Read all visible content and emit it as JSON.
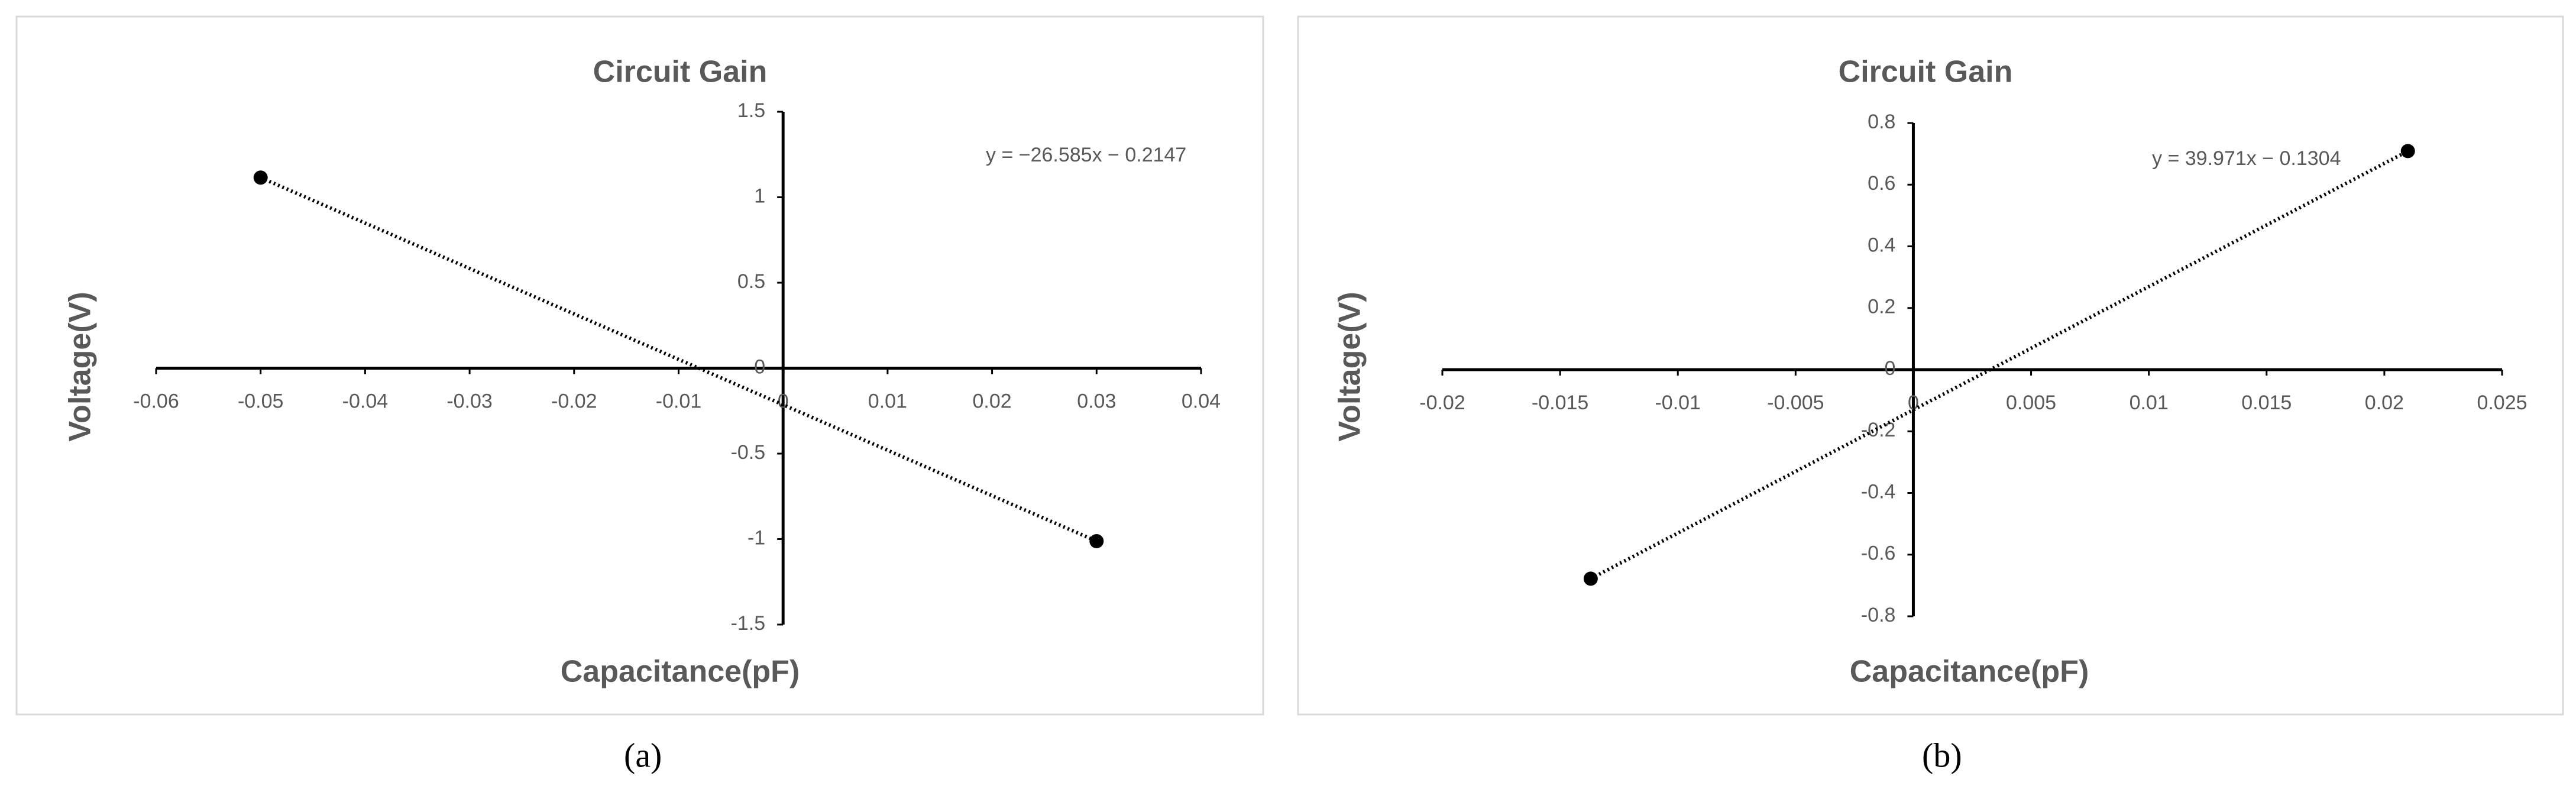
{
  "chart_data": [
    {
      "type": "scatter",
      "title": "Circuit Gain",
      "x_label": "Capacitance(pF)",
      "y_label": "Voltage(V)",
      "annotation": "y = −26.585x − 0.2147",
      "caption": "(a)",
      "x": [
        -0.05,
        0.03
      ],
      "values": [
        1.115,
        -1.012
      ],
      "color": "#000000",
      "trendline": true,
      "xlim": [
        -0.06,
        0.04
      ],
      "xticks": [
        -0.06,
        -0.05,
        -0.04,
        -0.03,
        -0.02,
        -0.01,
        0,
        0.01,
        0.02,
        0.03,
        0.04
      ],
      "ylim": [
        -1.5,
        1.5
      ],
      "yticks": [
        -1.5,
        -1,
        -0.5,
        0,
        0.5,
        1,
        1.5
      ]
    },
    {
      "type": "scatter",
      "title": "Circuit Gain",
      "x_label": "Capacitance(pF)",
      "y_label": "Voltage(V)",
      "annotation": "y = 39.971x − 0.1304",
      "caption": "(b)",
      "x": [
        -0.0137,
        0.021
      ],
      "values": [
        -0.678,
        0.709
      ],
      "color": "#000000",
      "trendline": true,
      "xlim": [
        -0.02,
        0.025
      ],
      "xticks": [
        -0.02,
        -0.015,
        -0.01,
        -0.005,
        0,
        0.005,
        0.01,
        0.015,
        0.02,
        0.025
      ],
      "ylim": [
        -0.8,
        0.8
      ],
      "yticks": [
        -0.8,
        -0.6,
        -0.4,
        -0.2,
        0,
        0.2,
        0.4,
        0.6,
        0.8
      ]
    }
  ]
}
